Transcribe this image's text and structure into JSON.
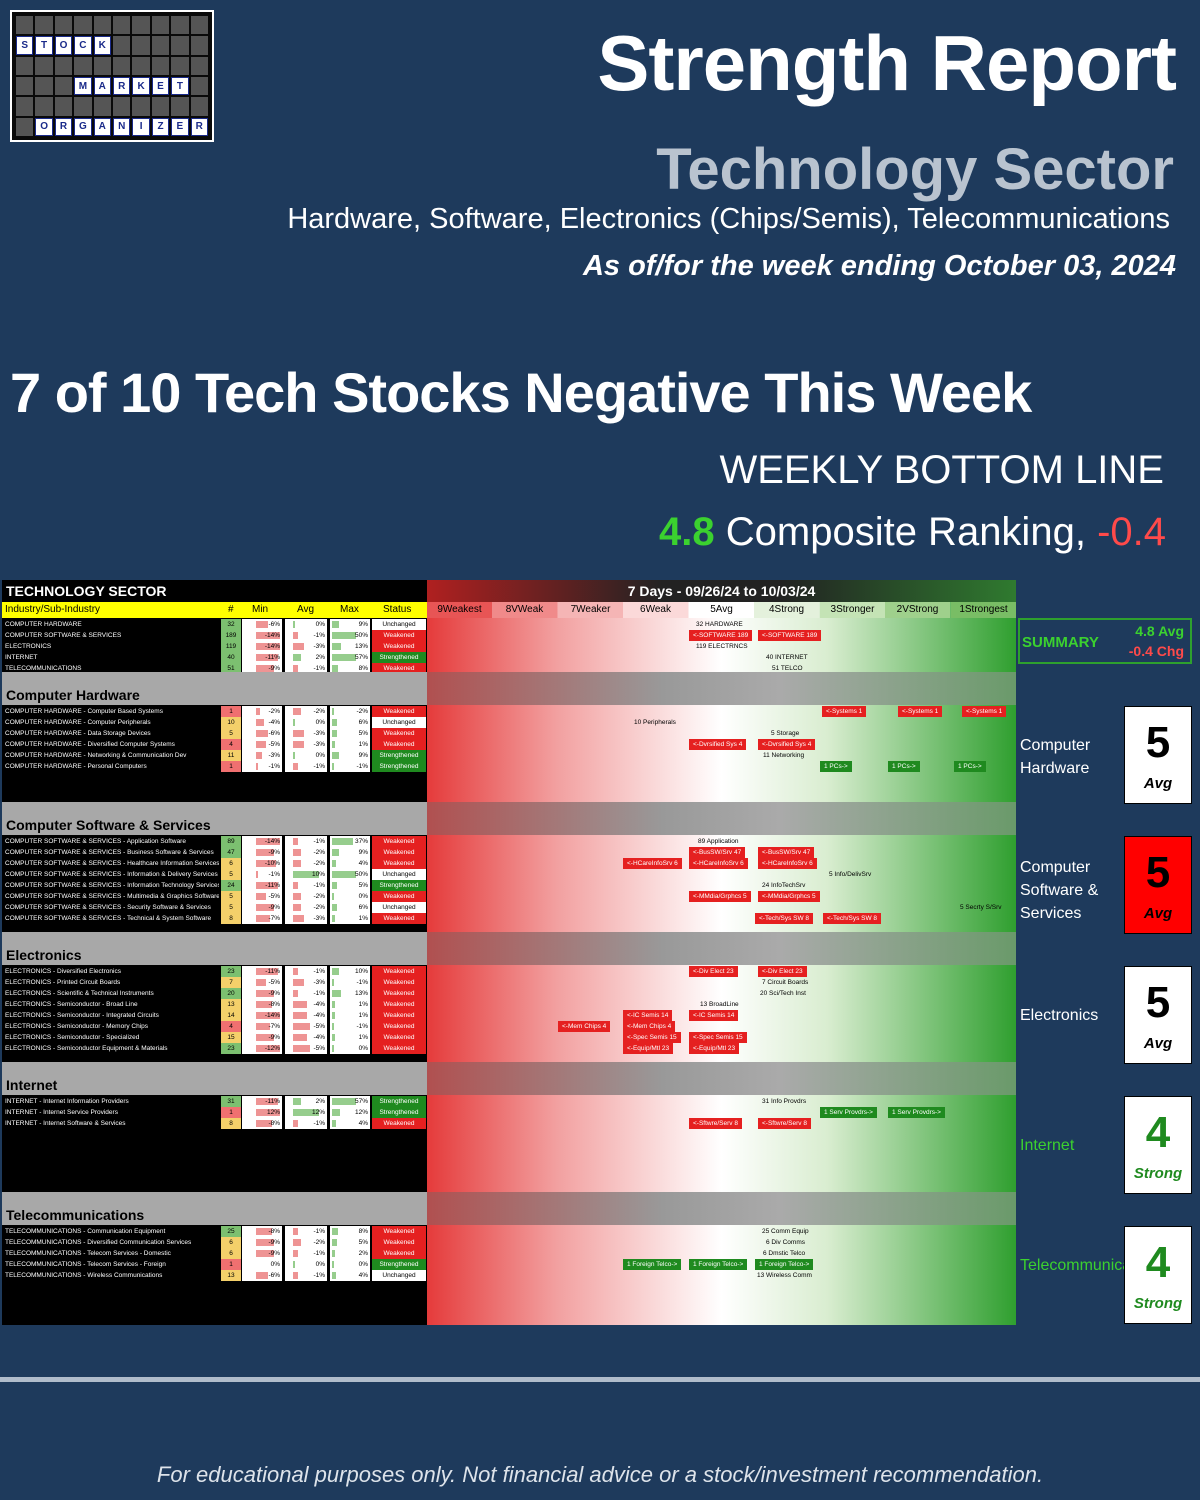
{
  "logo": {
    "words": [
      "STOCK",
      "MARKET",
      "ORGANIZER"
    ]
  },
  "header": {
    "title": "Strength Report",
    "sector": "Technology Sector",
    "subtitle": "Hardware, Software, Electronics (Chips/Semis), Telecommunications",
    "as_of": "As of/for the week ending October 03, 2024"
  },
  "headline": "7 of 10 Tech Stocks Negative This Week",
  "bottom_line": {
    "label": "WEEKLY BOTTOM LINE",
    "score": "4.8",
    "text": "Composite Ranking,",
    "change": "-0.4"
  },
  "table": {
    "title": "TECHNOLOGY SECTOR",
    "period": "7 Days - 09/26/24 to 10/03/24",
    "cols": {
      "ind": "Industry/Sub-Industry",
      "num": "#",
      "min": "Min",
      "avg": "Avg",
      "max": "Max",
      "status": "Status"
    },
    "buckets": [
      "9Weakest",
      "8VWeak",
      "7Weaker",
      "6Weak",
      "5Avg",
      "4Strong",
      "3Stronger",
      "2VStrong",
      "1Strongest"
    ],
    "top": [
      {
        "n": "COMPUTER HARDWARE",
        "c": "32",
        "mn": "-6%",
        "av": "0%",
        "mx": "9%",
        "st": "Unchanged"
      },
      {
        "n": "COMPUTER SOFTWARE & SERVICES",
        "c": "189",
        "mn": "-14%",
        "av": "-1%",
        "mx": "50%",
        "st": "Weakened"
      },
      {
        "n": "ELECTRONICS",
        "c": "119",
        "mn": "-14%",
        "av": "-3%",
        "mx": "13%",
        "st": "Weakened"
      },
      {
        "n": "INTERNET",
        "c": "40",
        "mn": "-11%",
        "av": "2%",
        "mx": "57%",
        "st": "Strengthened"
      },
      {
        "n": "TELECOMMUNICATIONS",
        "c": "51",
        "mn": "-9%",
        "av": "-1%",
        "mx": "8%",
        "st": "Weakened"
      }
    ],
    "top_labels": [
      "32 HARDWARE",
      "<-SOFTWARE 189",
      "<-SOFTWARE 189",
      "119 ELECTRNCS",
      "40 INTERNET",
      "51 TELCO"
    ],
    "sections": [
      {
        "title": "Computer Hardware",
        "rows": [
          {
            "n": "COMPUTER HARDWARE - Computer Based Systems",
            "c": "1",
            "mn": "-2%",
            "av": "-2%",
            "mx": "-2%",
            "st": "Weakened"
          },
          {
            "n": "COMPUTER HARDWARE - Computer Peripherals",
            "c": "10",
            "mn": "-4%",
            "av": "0%",
            "mx": "6%",
            "st": "Unchanged"
          },
          {
            "n": "COMPUTER HARDWARE - Data Storage Devices",
            "c": "5",
            "mn": "-6%",
            "av": "-3%",
            "mx": "5%",
            "st": "Weakened"
          },
          {
            "n": "COMPUTER HARDWARE - Diversified Computer Systems",
            "c": "4",
            "mn": "-5%",
            "av": "-3%",
            "mx": "1%",
            "st": "Weakened"
          },
          {
            "n": "COMPUTER HARDWARE - Networking & Communication Dev",
            "c": "11",
            "mn": "-3%",
            "av": "0%",
            "mx": "9%",
            "st": "Strengthened"
          },
          {
            "n": "COMPUTER HARDWARE - Personal Computers",
            "c": "1",
            "mn": "-1%",
            "av": "-1%",
            "mx": "-1%",
            "st": "Strengthened"
          }
        ],
        "labels": [
          "<-Systems 1",
          "<-Systems 1",
          "<-Systems 1",
          "10 Peripherals",
          "5 Storage",
          "<-Dvrsified Sys 4",
          "<-Dvrsified Sys 4",
          "11 Networking",
          "1 PCs->",
          "1 PCs->",
          "1 PCs->"
        ]
      },
      {
        "title": "Computer Software & Services",
        "rows": [
          {
            "n": "COMPUTER SOFTWARE & SERVICES - Application Software",
            "c": "89",
            "mn": "-14%",
            "av": "-1%",
            "mx": "37%",
            "st": "Weakened"
          },
          {
            "n": "COMPUTER SOFTWARE & SERVICES - Business Software & Services",
            "c": "47",
            "mn": "-9%",
            "av": "-2%",
            "mx": "9%",
            "st": "Weakened"
          },
          {
            "n": "COMPUTER SOFTWARE & SERVICES - Healthcare Information Services",
            "c": "6",
            "mn": "-10%",
            "av": "-2%",
            "mx": "4%",
            "st": "Weakened"
          },
          {
            "n": "COMPUTER SOFTWARE & SERVICES - Information & Delivery Services",
            "c": "5",
            "mn": "-1%",
            "av": "10%",
            "mx": "50%",
            "st": "Unchanged"
          },
          {
            "n": "COMPUTER SOFTWARE & SERVICES - Information Technology Services",
            "c": "24",
            "mn": "-11%",
            "av": "-1%",
            "mx": "5%",
            "st": "Strengthened"
          },
          {
            "n": "COMPUTER SOFTWARE & SERVICES - Multimedia & Graphics Software",
            "c": "5",
            "mn": "-5%",
            "av": "-2%",
            "mx": "0%",
            "st": "Weakened"
          },
          {
            "n": "COMPUTER SOFTWARE & SERVICES - Security Software & Services",
            "c": "5",
            "mn": "-9%",
            "av": "-2%",
            "mx": "6%",
            "st": "Unchanged"
          },
          {
            "n": "COMPUTER SOFTWARE & SERVICES - Technical & System Software",
            "c": "8",
            "mn": "-7%",
            "av": "-3%",
            "mx": "1%",
            "st": "Weakened"
          }
        ],
        "labels": [
          "89 Application",
          "<-BusSW/Srv 47",
          "<-BusSW/Srv 47",
          "<-HCareInfoSrv 6",
          "<-HCareInfoSrv 6",
          "<-HCareInfoSrv 6",
          "5 Info/DelivSrv",
          "24 InfoTechSrv",
          "<-MMdia/Grphcs 5",
          "<-MMdia/Grphcs 5",
          "5 Secrty S/Srv",
          "<-Tech/Sys SW 8",
          "<-Tech/Sys SW 8"
        ]
      },
      {
        "title": "Electronics",
        "rows": [
          {
            "n": "ELECTRONICS - Diversified Electronics",
            "c": "23",
            "mn": "-11%",
            "av": "-1%",
            "mx": "10%",
            "st": "Weakened"
          },
          {
            "n": "ELECTRONICS - Printed Circuit Boards",
            "c": "7",
            "mn": "-5%",
            "av": "-3%",
            "mx": "-1%",
            "st": "Weakened"
          },
          {
            "n": "ELECTRONICS - Scientific & Technical Instruments",
            "c": "20",
            "mn": "-9%",
            "av": "-1%",
            "mx": "13%",
            "st": "Weakened"
          },
          {
            "n": "ELECTRONICS - Semiconductor - Broad Line",
            "c": "13",
            "mn": "-8%",
            "av": "-4%",
            "mx": "1%",
            "st": "Weakened"
          },
          {
            "n": "ELECTRONICS - Semiconductor - Integrated Circuits",
            "c": "14",
            "mn": "-14%",
            "av": "-4%",
            "mx": "1%",
            "st": "Weakened"
          },
          {
            "n": "ELECTRONICS - Semiconductor - Memory Chips",
            "c": "4",
            "mn": "-7%",
            "av": "-5%",
            "mx": "-1%",
            "st": "Weakened"
          },
          {
            "n": "ELECTRONICS - Semiconductor - Specialized",
            "c": "15",
            "mn": "-9%",
            "av": "-4%",
            "mx": "1%",
            "st": "Weakened"
          },
          {
            "n": "ELECTRONICS - Semiconductor Equipment & Materials",
            "c": "23",
            "mn": "-12%",
            "av": "-5%",
            "mx": "0%",
            "st": "Weakened"
          }
        ],
        "labels": [
          "<-Div Elect 23",
          "<-Div Elect 23",
          "7 Circuit Boards",
          "20 Sci/Tech Inst",
          "13 BroadLine",
          "<-IC Semis 14",
          "<-IC Semis 14",
          "<-Mem Chips 4",
          "<-Mem Chips 4",
          "<-Spec Semis 15",
          "<-Spec Semis 15",
          "<-Equip/Mtl 23",
          "<-Equip/Mtl 23"
        ]
      },
      {
        "title": "Internet",
        "rows": [
          {
            "n": "INTERNET - Internet Information Providers",
            "c": "31",
            "mn": "-11%",
            "av": "2%",
            "mx": "57%",
            "st": "Strengthened"
          },
          {
            "n": "INTERNET - Internet Service Providers",
            "c": "1",
            "mn": "12%",
            "av": "12%",
            "mx": "12%",
            "st": "Strengthened"
          },
          {
            "n": "INTERNET - Internet Software & Services",
            "c": "8",
            "mn": "-8%",
            "av": "-1%",
            "mx": "4%",
            "st": "Weakened"
          }
        ],
        "labels": [
          "31 Info Provdrs",
          "1 Serv Provdrs->",
          "1 Serv Provdrs->",
          "<-Sftwre/Serv 8",
          "<-Sftwre/Serv 8"
        ]
      },
      {
        "title": "Telecommunications",
        "rows": [
          {
            "n": "TELECOMMUNICATIONS - Communication Equipment",
            "c": "25",
            "mn": "-8%",
            "av": "-1%",
            "mx": "8%",
            "st": "Weakened"
          },
          {
            "n": "TELECOMMUNICATIONS - Diversified Communication Services",
            "c": "6",
            "mn": "-9%",
            "av": "-2%",
            "mx": "5%",
            "st": "Weakened"
          },
          {
            "n": "TELECOMMUNICATIONS - Telecom Services - Domestic",
            "c": "6",
            "mn": "-9%",
            "av": "-1%",
            "mx": "2%",
            "st": "Weakened"
          },
          {
            "n": "TELECOMMUNICATIONS - Telecom Services - Foreign",
            "c": "1",
            "mn": "0%",
            "av": "0%",
            "mx": "0%",
            "st": "Strengthened"
          },
          {
            "n": "TELECOMMUNICATIONS - Wireless Communications",
            "c": "13",
            "mn": "-6%",
            "av": "-1%",
            "mx": "4%",
            "st": "Unchanged"
          }
        ],
        "labels": [
          "25 Comm Equip",
          "6 Div Comms",
          "6 Dmstic Telco",
          "1 Foreign Telco->",
          "1 Foreign Telco->",
          "1 Foreign Telco->",
          "13 Wireless Comm"
        ]
      }
    ]
  },
  "summary": {
    "label": "SUMMARY",
    "avg": "4.8 Avg",
    "chg": "-0.4 Chg"
  },
  "side": [
    {
      "name": "Computer Hardware",
      "value": "5",
      "rating": "Avg"
    },
    {
      "name": "Computer Software & Services",
      "value": "5",
      "rating": "Avg"
    },
    {
      "name": "Electronics",
      "value": "5",
      "rating": "Avg"
    },
    {
      "name": "Internet",
      "value": "4",
      "rating": "Strong"
    },
    {
      "name": "Telecommunications",
      "value": "4",
      "rating": "Strong"
    }
  ],
  "footer": "For educational purposes only. Not financial advice or a stock/investment recommendation."
}
